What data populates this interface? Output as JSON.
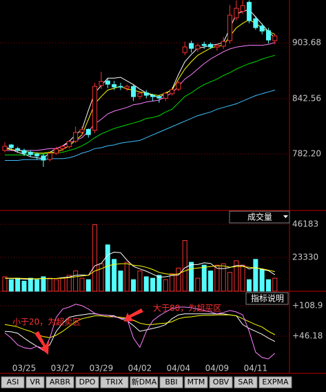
{
  "chart_data": [
    {
      "type": "candlestick",
      "categories": [
        null,
        null,
        null,
        "03/25",
        null,
        null,
        null,
        null,
        null,
        "03/27",
        null,
        null,
        null,
        null,
        null,
        "03/29",
        null,
        null,
        null,
        null,
        null,
        "04/02",
        null,
        null,
        null,
        null,
        null,
        "04/04",
        null,
        null,
        null,
        null,
        null,
        "04/09",
        null,
        null,
        null,
        null,
        null,
        "04/11",
        null,
        null,
        null
      ],
      "open": [
        786,
        792,
        788,
        786,
        784,
        782,
        780,
        776,
        783,
        788,
        790,
        796,
        806,
        809,
        808,
        857,
        862,
        858,
        856,
        854,
        856,
        845,
        849,
        846,
        845,
        843,
        848,
        853,
        893,
        903,
        897,
        902,
        902,
        899,
        900,
        906,
        931,
        938,
        948,
        930,
        922,
        917,
        906
      ],
      "high": [
        795,
        793,
        790,
        788,
        786,
        784,
        782,
        784,
        790,
        792,
        797,
        812,
        812,
        810,
        860,
        872,
        865,
        862,
        860,
        858,
        858,
        850,
        852,
        848,
        847,
        850,
        855,
        862,
        905,
        906,
        903,
        905,
        904,
        903,
        910,
        945,
        950,
        952,
        950,
        933,
        925,
        920,
        913
      ],
      "low": [
        784,
        786,
        784,
        780,
        779,
        776,
        768,
        774,
        781,
        785,
        788,
        794,
        802,
        800,
        805,
        853,
        854,
        852,
        852,
        851,
        840,
        842,
        843,
        840,
        838,
        840,
        846,
        851,
        890,
        893,
        894,
        897,
        897,
        895,
        897,
        903,
        928,
        935,
        925,
        918,
        913,
        903,
        902
      ],
      "close": [
        790.5,
        789,
        786,
        782.9,
        781.4,
        779.9,
        775.4,
        782.9,
        787.5,
        790.5,
        795.8,
        805.6,
        808.6,
        803.3,
        856.1,
        861.4,
        858.4,
        855.4,
        855.4,
        856.1,
        844.8,
        848.6,
        846.3,
        844.8,
        843.3,
        848.6,
        852.4,
        859.9,
        899.2,
        897.6,
        900.7,
        900.7,
        899.2,
        900.7,
        905.2,
        933.9,
        941.4,
        944.4,
        927.8,
        920.3,
        916.5,
        906.7,
        911.2
      ],
      "up_color": "#ff3232",
      "down_color": "#54fcfc",
      "series": [
        {
          "color": "#ffffff",
          "values": [
            790,
            787,
            784,
            782,
            779,
            778,
            777,
            784,
            788,
            791,
            796,
            803,
            809,
            830,
            849,
            857,
            865,
            865,
            866,
            862,
            858,
            853,
            849,
            846,
            844,
            848,
            853,
            869,
            883,
            891,
            898,
            899,
            901,
            902,
            904,
            920,
            935,
            938,
            940,
            932,
            924,
            916,
            909
          ]
        },
        {
          "color": "#ffff00",
          "values": [
            788,
            787,
            786,
            785,
            784,
            783,
            783,
            784,
            784,
            787,
            791,
            797,
            803,
            820,
            837,
            845,
            852,
            854,
            856,
            853,
            852,
            850,
            849,
            847,
            846,
            849,
            852,
            864,
            875,
            883,
            890,
            894,
            898,
            900,
            901,
            911,
            920,
            925,
            929,
            925,
            920,
            916,
            913
          ]
        },
        {
          "color": "#ff80ff",
          "values": [
            786,
            786,
            786,
            786,
            786,
            786,
            787,
            788,
            788,
            791,
            794,
            797,
            800,
            807,
            815,
            820,
            826,
            829,
            831,
            833,
            836,
            837,
            839,
            840,
            841,
            845,
            849,
            856,
            864,
            869,
            875,
            881,
            886,
            890,
            894,
            897,
            899,
            900,
            901,
            901,
            901,
            902,
            904
          ]
        },
        {
          "color": "#00e000",
          "values": [
            781,
            781,
            781,
            781,
            782,
            782,
            782,
            783,
            783,
            784,
            786,
            788,
            791,
            795,
            800,
            804,
            807,
            810,
            812,
            814,
            816,
            818,
            821,
            822,
            824,
            828,
            831,
            838,
            845,
            849,
            854,
            858,
            861,
            864,
            868,
            871,
            875,
            878,
            881,
            883,
            886,
            888,
            890
          ]
        },
        {
          "color": "#40c0ff",
          "values": [
            775,
            775,
            775,
            776,
            776,
            776,
            776,
            777,
            777,
            777,
            778,
            780,
            783,
            785,
            788,
            789,
            791,
            792,
            794,
            795,
            796,
            797,
            800,
            803,
            806,
            809,
            812,
            815,
            818,
            821,
            824,
            826,
            828,
            831,
            833,
            835,
            837,
            840,
            843,
            846,
            848,
            850,
            852
          ]
        }
      ],
      "ylim": [
        720.3,
        950.5
      ],
      "yticks": [
        903.68,
        842.56,
        {
          "value": 782.2,
          "label": "782.20"
        }
      ]
    },
    {
      "type": "bar",
      "title": "成交量",
      "values": [
        10000,
        8000,
        9000,
        7000,
        9000,
        8000,
        10000,
        9000,
        8000,
        9000,
        11000,
        14000,
        9000,
        8000,
        46000,
        19000,
        32000,
        22000,
        14000,
        20000,
        8000,
        14000,
        10000,
        9000,
        11000,
        8000,
        12000,
        16000,
        35000,
        20000,
        9000,
        18000,
        14000,
        18000,
        19000,
        13000,
        21000,
        18000,
        8000,
        22000,
        15000,
        8000,
        9000
      ],
      "series": [
        {
          "color": "#ffffff",
          "values": [
            9000,
            8800,
            8600,
            8400,
            8200,
            8600,
            8800,
            8600,
            8800,
            9400,
            9800,
            11000,
            11200,
            11000,
            17600,
            19200,
            25000,
            27000,
            26600,
            21400,
            17200,
            15400,
            13800,
            11800,
            9600,
            10000,
            10800,
            11200,
            16200,
            18400,
            18400,
            19600,
            19200,
            15800,
            15600,
            16400,
            17800,
            17800,
            15400,
            16400,
            15000,
            14200,
            11400
          ]
        },
        {
          "color": "#ffff00",
          "values": [
            9000,
            9000,
            9000,
            8800,
            8600,
            8600,
            8800,
            8800,
            8800,
            9000,
            9400,
            10000,
            10500,
            11000,
            14000,
            15500,
            17500,
            18500,
            19000,
            19000,
            18000,
            17500,
            16500,
            15000,
            13000,
            12000,
            11500,
            12000,
            14000,
            15500,
            16000,
            16500,
            17000,
            17500,
            17500,
            16500,
            17000,
            17000,
            16500,
            16000,
            15500,
            14500,
            13500
          ]
        }
      ],
      "ylim": [
        0,
        55700
      ],
      "yticks": [
        46183,
        23330
      ]
    },
    {
      "type": "line",
      "title": "指标说明",
      "series": [
        {
          "color": "#ffffff",
          "values": [
            56,
            55,
            52,
            42,
            33,
            25,
            20,
            28,
            56,
            73,
            85,
            88,
            90,
            92,
            92,
            90,
            89,
            88,
            82,
            78,
            68,
            56,
            59,
            62,
            65,
            70,
            82,
            90,
            92,
            92,
            92,
            92,
            92,
            92,
            92,
            90,
            88,
            70,
            62,
            56,
            50,
            42,
            35
          ]
        },
        {
          "color": "#ffff00",
          "values": [
            70,
            68,
            65,
            60,
            56,
            50,
            45,
            43,
            48,
            56,
            66,
            76,
            82,
            85,
            88,
            88,
            86,
            86,
            85,
            83,
            79,
            73,
            70,
            70,
            72,
            73,
            76,
            82,
            85,
            86,
            88,
            89,
            89,
            90,
            90,
            90,
            88,
            82,
            76,
            70,
            65,
            56,
            49
          ]
        },
        {
          "color": "#ff80ff",
          "values": [
            53,
            42,
            28,
            22,
            20,
            25,
            16,
            42,
            85,
            102,
            106,
            112,
            109,
            102,
            93,
            90,
            89,
            86,
            83,
            82,
            42,
            23,
            56,
            78,
            88,
            96,
            103,
            106,
            106,
            105,
            102,
            99,
            96,
            92,
            95,
            99,
            96,
            90,
            56,
            13,
            2,
            -1,
            11
          ]
        }
      ],
      "ylim": [
        -29.4,
        138.8
      ],
      "yticks": [
        {
          "value": 108.9,
          "label": "+108.9"
        },
        {
          "value": 46.18,
          "label": "+46.18"
        }
      ],
      "annotations": [
        "小于20，为超卖区",
        "大于80，为超买区"
      ]
    }
  ],
  "tabs": [
    "ASI",
    "VR",
    "ARBR",
    "DPO",
    "TRIX",
    "新DMA",
    "BBI",
    "MTM",
    "OBV",
    "SAR",
    "EXPMA"
  ]
}
